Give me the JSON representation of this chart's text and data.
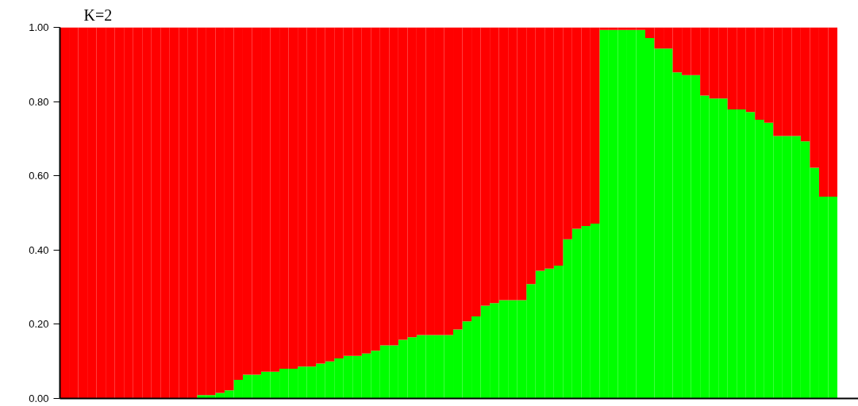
{
  "chart_data": {
    "type": "bar",
    "title": "K=2",
    "stacked": true,
    "grid": false,
    "tick_labels": "y",
    "categories": [
      null,
      null,
      null,
      null,
      null,
      null,
      null,
      null,
      null,
      null,
      null,
      null,
      null,
      null,
      null,
      null,
      null,
      null,
      null,
      null,
      null,
      null,
      null,
      null,
      null,
      null,
      null,
      null,
      null,
      null,
      null,
      null,
      null,
      null,
      null,
      null,
      null,
      null,
      null,
      null,
      null,
      null,
      null,
      null,
      null,
      null,
      null,
      null,
      null,
      null,
      null,
      null,
      null,
      null,
      null,
      null,
      null,
      null,
      null,
      null,
      null,
      null,
      null,
      null,
      null,
      null,
      null,
      null,
      null,
      null,
      null,
      null,
      null,
      null,
      null,
      null,
      null,
      null,
      null,
      null,
      null,
      null,
      null,
      null,
      null
    ],
    "ylim": [
      0,
      1
    ],
    "yticks": [
      {
        "value": 0,
        "label": "0.00"
      },
      {
        "value": 0.2,
        "label": "0.20"
      },
      {
        "value": 0.4,
        "label": "0.40"
      },
      {
        "value": 0.6,
        "label": "0.60"
      },
      {
        "value": 0.8,
        "label": "0.80"
      },
      {
        "value": 1,
        "label": "1.00"
      }
    ],
    "series": [
      {
        "color": "#00ff00",
        "values": [
          0,
          0,
          0,
          0,
          0,
          0,
          0,
          0,
          0,
          0,
          0,
          0,
          0,
          0,
          0,
          0.009,
          0.009,
          0.015,
          0.022,
          0.05,
          0.064,
          0.064,
          0.072,
          0.072,
          0.08,
          0.08,
          0.086,
          0.086,
          0.094,
          0.1,
          0.108,
          0.115,
          0.115,
          0.121,
          0.129,
          0.143,
          0.143,
          0.158,
          0.165,
          0.171,
          0.171,
          0.171,
          0.171,
          0.186,
          0.208,
          0.221,
          0.25,
          0.257,
          0.265,
          0.265,
          0.265,
          0.308,
          0.344,
          0.35,
          0.358,
          0.429,
          0.457,
          0.465,
          0.471,
          0.993,
          0.993,
          0.993,
          0.993,
          0.993,
          0.971,
          0.943,
          0.943,
          0.879,
          0.871,
          0.871,
          0.816,
          0.808,
          0.808,
          0.779,
          0.779,
          0.772,
          0.751,
          0.743,
          0.707,
          0.707,
          0.707,
          0.693,
          0.622,
          0.544,
          0.544
        ]
      },
      {
        "color": "#ff0000",
        "values": [
          1,
          1,
          1,
          1,
          1,
          1,
          1,
          1,
          1,
          1,
          1,
          1,
          1,
          1,
          1,
          0.991,
          0.991,
          0.985,
          0.978,
          0.95,
          0.936,
          0.936,
          0.928,
          0.928,
          0.92,
          0.92,
          0.914,
          0.914,
          0.906,
          0.9,
          0.892,
          0.885,
          0.885,
          0.879,
          0.871,
          0.857,
          0.857,
          0.842,
          0.835,
          0.829,
          0.829,
          0.829,
          0.829,
          0.814,
          0.792,
          0.779,
          0.75,
          0.743,
          0.735,
          0.735,
          0.735,
          0.692,
          0.656,
          0.65,
          0.642,
          0.571,
          0.543,
          0.535,
          0.529,
          0.007,
          0.007,
          0.007,
          0.007,
          0.007,
          0.029,
          0.057,
          0.057,
          0.121,
          0.129,
          0.129,
          0.184,
          0.192,
          0.192,
          0.221,
          0.221,
          0.228,
          0.249,
          0.257,
          0.293,
          0.293,
          0.293,
          0.307,
          0.378,
          0.456,
          0.456
        ]
      }
    ]
  }
}
